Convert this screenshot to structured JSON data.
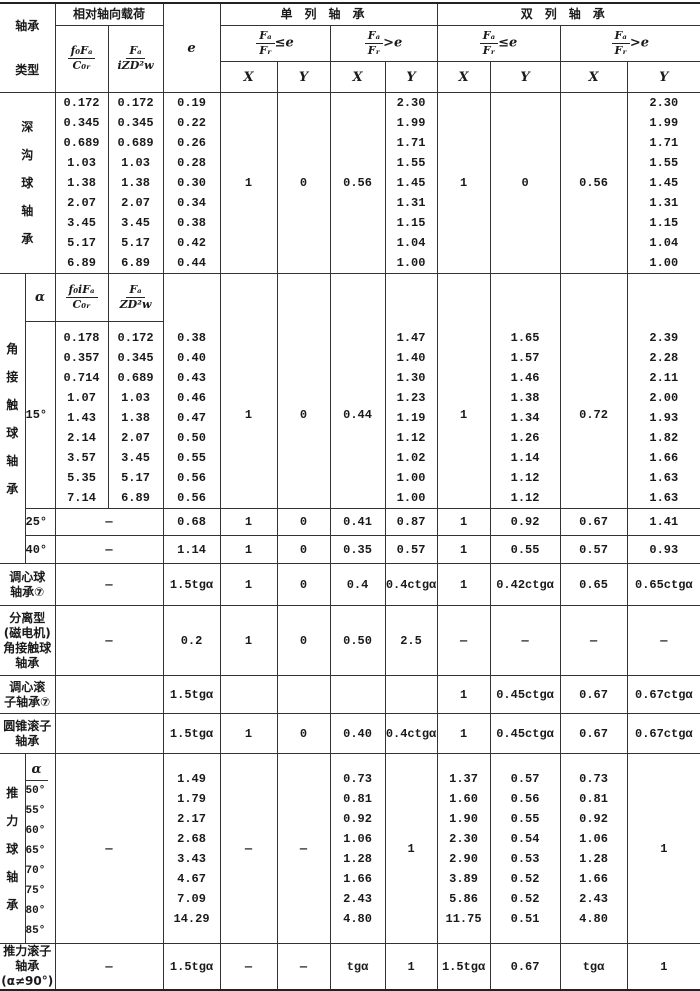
{
  "header": {
    "type_label": [
      "轴承",
      "类型"
    ],
    "relative_axial_load": "相对轴向载荷",
    "load_col1": {
      "num": "f₀Fₐ",
      "den": "C₀ᵣ"
    },
    "load_col2": {
      "num": "Fₐ",
      "den": "iZD²w"
    },
    "e": "e",
    "single_row": "单列轴承",
    "double_row": "双列轴承",
    "cond_le": {
      "num": "Fₐ",
      "den": "Fᵣ",
      "rel": "≤e"
    },
    "cond_gt": {
      "num": "Fₐ",
      "den": "Fᵣ",
      "rel": ">e"
    },
    "x": "X",
    "y": "Y"
  },
  "deep_groove": {
    "name": [
      "深",
      "沟",
      "球",
      "轴",
      "承"
    ],
    "f0fa_c0r": [
      "0.172",
      "0.345",
      "0.689",
      "1.03",
      "1.38",
      "2.07",
      "3.45",
      "5.17",
      "6.89"
    ],
    "fa_izdw2": [
      "0.172",
      "0.345",
      "0.689",
      "1.03",
      "1.38",
      "2.07",
      "3.45",
      "5.17",
      "6.89"
    ],
    "e": [
      "0.19",
      "0.22",
      "0.26",
      "0.28",
      "0.30",
      "0.34",
      "0.38",
      "0.42",
      "0.44"
    ],
    "single_le_x": "1",
    "single_le_y": "0",
    "single_gt_x": "0.56",
    "single_gt_y": [
      "2.30",
      "1.99",
      "1.71",
      "1.55",
      "1.45",
      "1.31",
      "1.15",
      "1.04",
      "1.00"
    ],
    "double_le_x": "1",
    "double_le_y": "0",
    "double_gt_x": "0.56",
    "double_gt_y": [
      "2.30",
      "1.99",
      "1.71",
      "1.55",
      "1.45",
      "1.31",
      "1.15",
      "1.04",
      "1.00"
    ]
  },
  "angular_contact": {
    "name": [
      "角",
      "接",
      "触",
      "球",
      "轴",
      "承"
    ],
    "alpha_label": "α",
    "sub_col1": {
      "num": "f₀iFₐ",
      "den": "C₀ᵣ"
    },
    "sub_col2": {
      "num": "Fₐ",
      "den": "ZD²w"
    },
    "a15": {
      "alpha": "15°",
      "f0ifa_c0r": [
        "0.178",
        "0.357",
        "0.714",
        "1.07",
        "1.43",
        "2.14",
        "3.57",
        "5.35",
        "7.14"
      ],
      "fa_zdw2": [
        "0.172",
        "0.345",
        "0.689",
        "1.03",
        "1.38",
        "2.07",
        "3.45",
        "5.17",
        "6.89"
      ],
      "e": [
        "0.38",
        "0.40",
        "0.43",
        "0.46",
        "0.47",
        "0.50",
        "0.55",
        "0.56",
        "0.56"
      ],
      "single_le_x": "1",
      "single_le_y": "0",
      "single_gt_x": "0.44",
      "single_gt_y": [
        "1.47",
        "1.40",
        "1.30",
        "1.23",
        "1.19",
        "1.12",
        "1.02",
        "1.00",
        "1.00"
      ],
      "double_le_x": "1",
      "double_le_y": [
        "1.65",
        "1.57",
        "1.46",
        "1.38",
        "1.34",
        "1.26",
        "1.14",
        "1.12",
        "1.12"
      ],
      "double_gt_x": "0.72",
      "double_gt_y": [
        "2.39",
        "2.28",
        "2.11",
        "2.00",
        "1.93",
        "1.82",
        "1.66",
        "1.63",
        "1.63"
      ]
    },
    "a25": {
      "alpha": "25°",
      "load": "—",
      "e": "0.68",
      "values": [
        "1",
        "0",
        "0.41",
        "0.87",
        "1",
        "0.92",
        "0.67",
        "1.41"
      ]
    },
    "a40": {
      "alpha": "40°",
      "load": "—",
      "e": "1.14",
      "values": [
        "1",
        "0",
        "0.35",
        "0.57",
        "1",
        "0.55",
        "0.57",
        "0.93"
      ]
    }
  },
  "self_aligning_ball": {
    "name": [
      "调心球",
      "轴承⑦"
    ],
    "load": "—",
    "e": "1.5tgα",
    "values": [
      "1",
      "0",
      "0.4",
      "0.4ctgα",
      "1",
      "0.42ctgα",
      "0.65",
      "0.65ctgα"
    ]
  },
  "separable_magneto": {
    "name": [
      "分离型",
      "(磁电机)",
      "角接触球",
      "轴承"
    ],
    "load": "—",
    "e": "0.2",
    "values": [
      "1",
      "0",
      "0.50",
      "2.5",
      "—",
      "—",
      "—",
      "—"
    ]
  },
  "self_aligning_roller": {
    "name": [
      "调心滚",
      "子轴承⑦"
    ],
    "load": "",
    "e": "1.5tgα",
    "values": [
      "",
      "",
      "",
      "",
      "1",
      "0.45ctgα",
      "0.67",
      "0.67ctgα"
    ]
  },
  "tapered_roller": {
    "name": [
      "圆锥滚子",
      "轴承"
    ],
    "load": "",
    "e": "1.5tgα",
    "values": [
      "1",
      "0",
      "0.40",
      "0.4ctgα",
      "1",
      "0.45ctgα",
      "0.67",
      "0.67ctgα"
    ]
  },
  "thrust_ball": {
    "name": [
      "推",
      "力",
      "球",
      "轴",
      "承"
    ],
    "alpha_label": "α",
    "alpha": [
      "50°",
      "55°",
      "60°",
      "65°",
      "70°",
      "75°",
      "80°",
      "85°"
    ],
    "load": "—",
    "e": [
      "1.49",
      "1.79",
      "2.17",
      "2.68",
      "3.43",
      "4.67",
      "7.09",
      "14.29"
    ],
    "single_le_x": "—",
    "single_le_y": "—",
    "single_gt_x": [
      "0.73",
      "0.81",
      "0.92",
      "1.06",
      "1.28",
      "1.66",
      "2.43",
      "4.80"
    ],
    "single_gt_y": "1",
    "double_le_x": [
      "1.37",
      "1.60",
      "1.90",
      "2.30",
      "2.90",
      "3.89",
      "5.86",
      "11.75"
    ],
    "double_le_y": [
      "0.57",
      "0.56",
      "0.55",
      "0.54",
      "0.53",
      "0.52",
      "0.52",
      "0.51"
    ],
    "double_gt_x": [
      "0.73",
      "0.81",
      "0.92",
      "1.06",
      "1.28",
      "1.66",
      "2.43",
      "4.80"
    ],
    "double_gt_y": "1"
  },
  "thrust_roller": {
    "name": [
      "推力滚子",
      "轴承",
      "(α≠90°)"
    ],
    "load": "—",
    "e": "1.5tgα",
    "values": [
      "—",
      "—",
      "tgα",
      "1",
      "1.5tgα",
      "0.67",
      "tgα",
      "1"
    ]
  }
}
